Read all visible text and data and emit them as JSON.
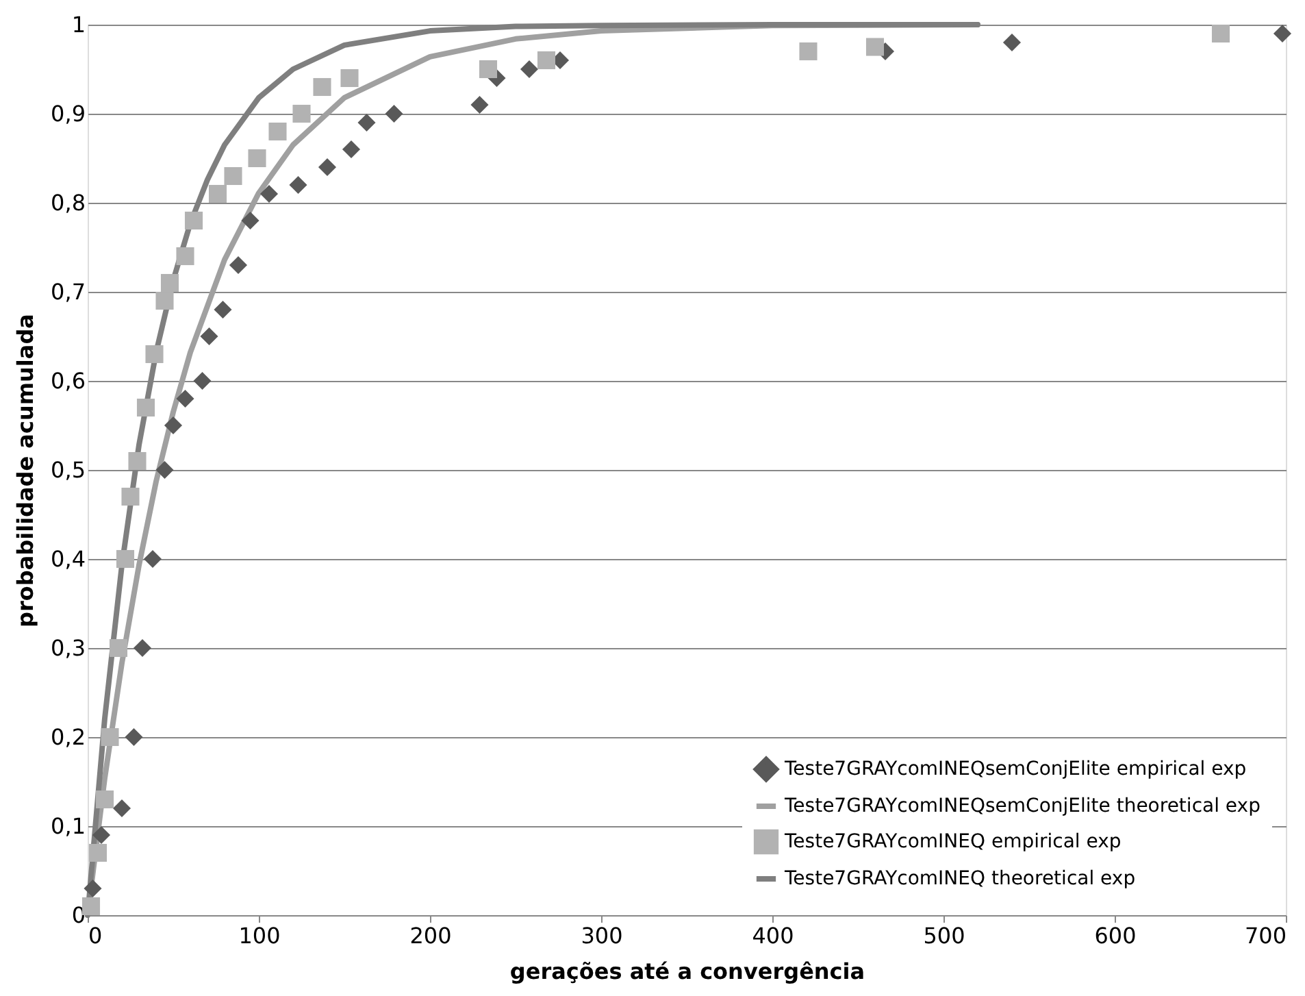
{
  "chart_data": {
    "type": "scatter",
    "xlabel": "gerações até a convergência",
    "ylabel": "probabilidade acumulada",
    "xlim": [
      0,
      700
    ],
    "xticks": [
      0,
      100,
      200,
      300,
      400,
      500,
      600,
      700
    ],
    "ylim": [
      0,
      1
    ],
    "yticks": [
      0,
      {
        "value": 0.1,
        "label": "0,1"
      },
      {
        "value": 0.2,
        "label": "0,2"
      },
      {
        "value": 0.3,
        "label": "0,3"
      },
      {
        "value": 0.4,
        "label": "0,4"
      },
      {
        "value": 0.5,
        "label": "0,5"
      },
      {
        "value": 0.6,
        "label": "0,6"
      },
      {
        "value": 0.7,
        "label": "0,7"
      },
      {
        "value": 0.8,
        "label": "0,8"
      },
      {
        "value": 0.9,
        "label": "0,9"
      },
      1
    ],
    "grid": "y",
    "legend": "bottom right",
    "series": [
      {
        "name": "Teste7GRAYcomINEQsemConjElite empirical exp",
        "marker": "diamond",
        "color": "#595959",
        "x": [
          3,
          8,
          20,
          27,
          32,
          38,
          45,
          50,
          57,
          67,
          71,
          79,
          88,
          95,
          106,
          123,
          140,
          154,
          163,
          179,
          229,
          239,
          258,
          276,
          466,
          540,
          698
        ],
        "values": [
          0.03,
          0.09,
          0.12,
          0.2,
          0.3,
          0.4,
          0.5,
          0.55,
          0.58,
          0.6,
          0.65,
          0.68,
          0.73,
          0.78,
          0.81,
          0.82,
          0.84,
          0.86,
          0.89,
          0.9,
          0.91,
          0.94,
          0.95,
          0.96,
          0.97,
          0.98,
          0.99
        ]
      },
      {
        "name": "Teste7GRAYcomINEQsemConjElite theoretical exp",
        "type": "line",
        "marker": "none",
        "color": "#a0a0a0",
        "x": [
          0,
          10,
          20,
          30,
          40,
          50,
          60,
          80,
          100,
          120,
          150,
          200,
          250,
          300,
          400,
          520
        ],
        "values": [
          0,
          0.154,
          0.283,
          0.393,
          0.487,
          0.565,
          0.632,
          0.736,
          0.811,
          0.865,
          0.918,
          0.964,
          0.984,
          0.993,
          0.999,
          1
        ]
      },
      {
        "name": "Teste7GRAYcomINEQ empirical exp",
        "marker": "square",
        "color": "#b2b2b2",
        "x": [
          2,
          6,
          10,
          13,
          18,
          22,
          25,
          29,
          34,
          39,
          45,
          48,
          57,
          62,
          76,
          85,
          99,
          111,
          125,
          137,
          153,
          234,
          268,
          421,
          460,
          662
        ],
        "values": [
          0.01,
          0.07,
          0.13,
          0.2,
          0.3,
          0.4,
          0.47,
          0.51,
          0.57,
          0.63,
          0.69,
          0.71,
          0.74,
          0.78,
          0.81,
          0.83,
          0.85,
          0.88,
          0.9,
          0.93,
          0.94,
          0.95,
          0.96,
          0.97,
          0.975,
          0.99
        ]
      },
      {
        "name": "Teste7GRAYcomINEQ theoretical exp",
        "type": "line",
        "marker": "none",
        "color": "#7f7f7f",
        "x": [
          0,
          10,
          20,
          30,
          40,
          50,
          60,
          70,
          80,
          100,
          120,
          150,
          200,
          250,
          300,
          400,
          520
        ],
        "values": [
          0,
          0.221,
          0.393,
          0.528,
          0.632,
          0.713,
          0.777,
          0.826,
          0.865,
          0.918,
          0.95,
          0.977,
          0.993,
          0.998,
          0.999,
          1,
          1
        ]
      }
    ]
  }
}
